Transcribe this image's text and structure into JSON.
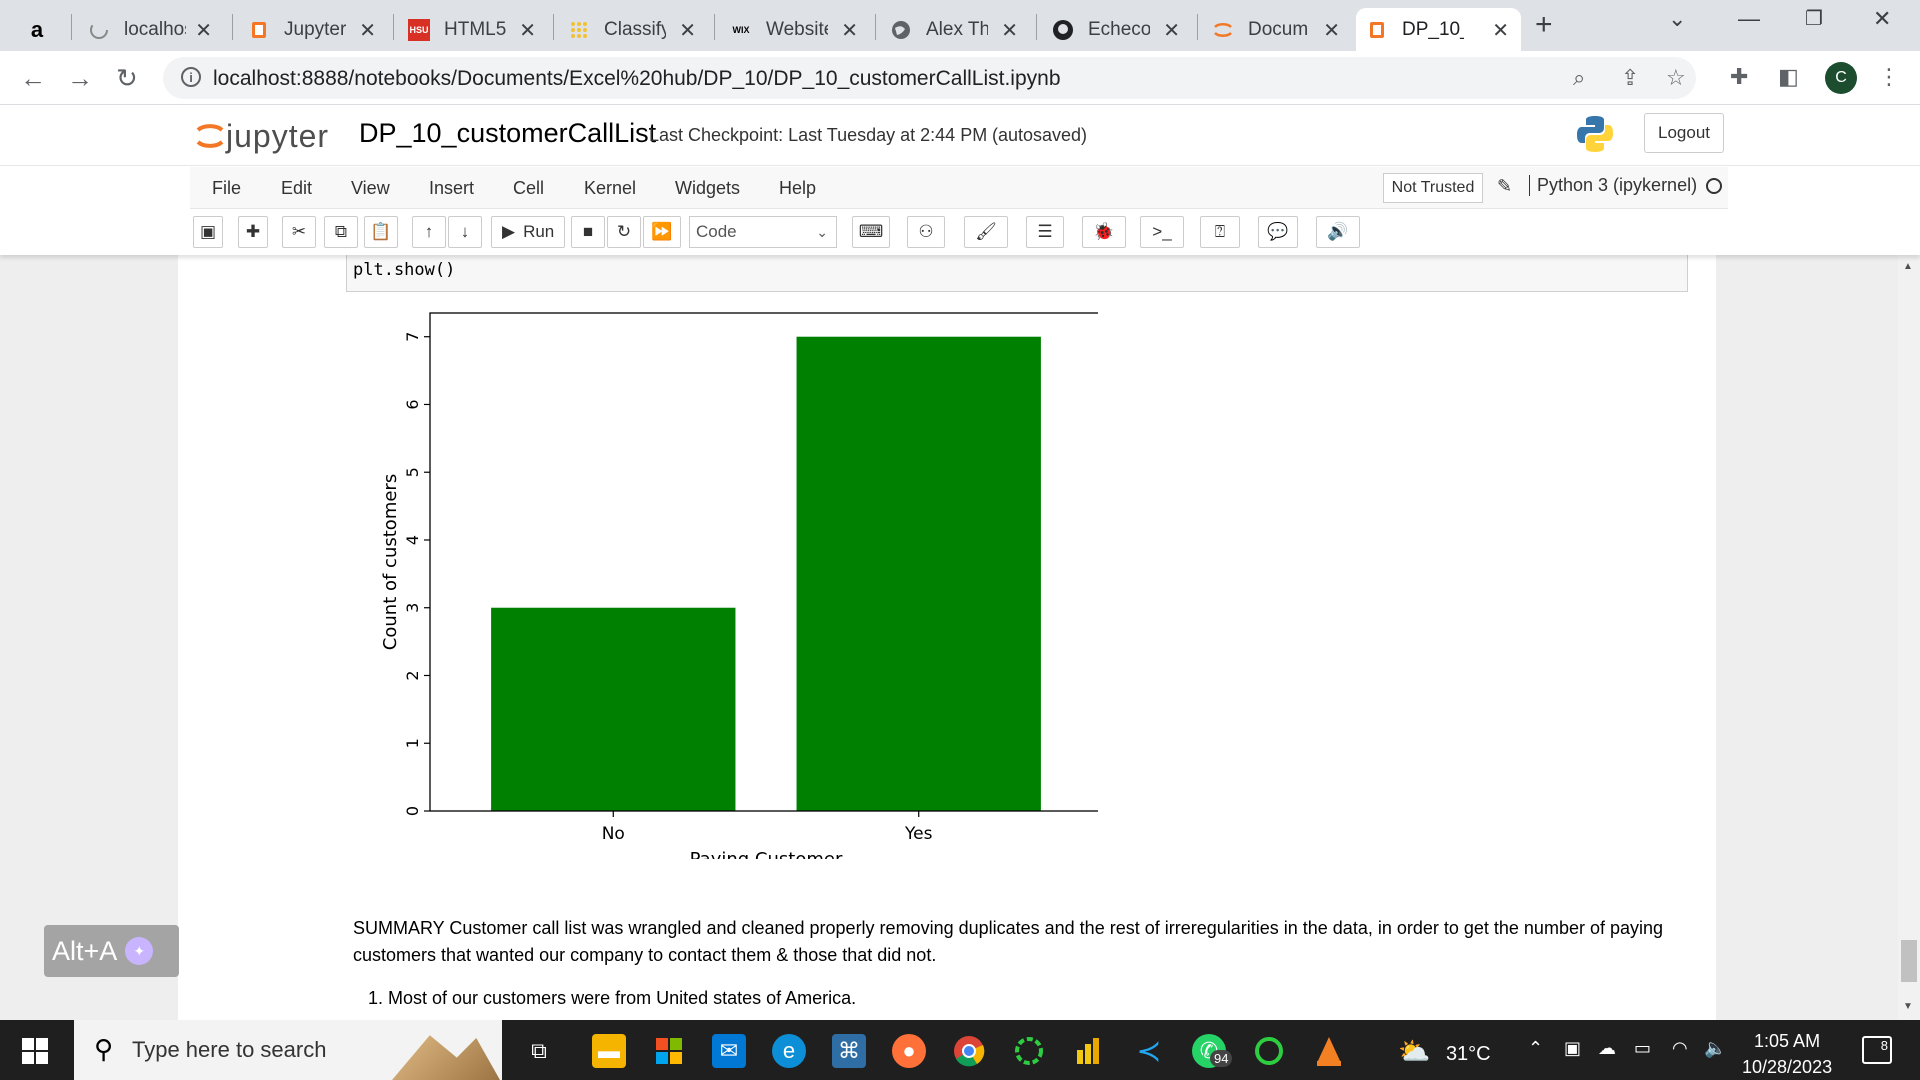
{
  "browser": {
    "tabs": [
      {
        "title": "a",
        "favicon": "amazon-icon",
        "closable": false
      },
      {
        "title": "localhost",
        "favicon": "loading-icon"
      },
      {
        "title": "Jupyter",
        "favicon": "notebook-icon"
      },
      {
        "title": "HTML5",
        "favicon": "hsu-icon",
        "favicon_text": "HSU"
      },
      {
        "title": "Classify",
        "favicon": "grid-icon"
      },
      {
        "title": "Website",
        "favicon": "wix-icon",
        "favicon_text": "WIX"
      },
      {
        "title": "Alex Th",
        "favicon": "globe-icon"
      },
      {
        "title": "Echeco",
        "favicon": "github-icon"
      },
      {
        "title": "Docum",
        "favicon": "jupyter-icon"
      },
      {
        "title": "DP_10_",
        "favicon": "notebook-icon",
        "active": true
      }
    ],
    "new_tab": "+",
    "address": "localhost:8888/notebooks/Documents/Excel%20hub/DP_10/DP_10_customerCallList.ipynb",
    "profile_initial": "C",
    "accent": "#dee1e6"
  },
  "jupyter": {
    "logo_text": "jupyter",
    "notebook_name": "DP_10_customerCallList",
    "checkpoint": "Last Checkpoint: Last Tuesday at 2:44 PM",
    "autosave": "(autosaved)",
    "logout": "Logout",
    "menu": [
      "File",
      "Edit",
      "View",
      "Insert",
      "Cell",
      "Kernel",
      "Widgets",
      "Help"
    ],
    "trust": "Not Trusted",
    "kernel": "Python 3 (ipykernel)",
    "toolbar": {
      "run_label": "Run",
      "cell_type": "Code"
    }
  },
  "cell": {
    "code": "plt.show()"
  },
  "chart_data": {
    "type": "bar",
    "categories": [
      "No",
      "Yes"
    ],
    "values": [
      3,
      7
    ],
    "xlabel": "Paying Customer",
    "ylabel": "Count of customers",
    "ylim": [
      0,
      7.35
    ],
    "yticks": [
      0,
      1,
      2,
      3,
      4,
      5,
      6,
      7
    ],
    "bar_color": "#008000",
    "grid": false
  },
  "markdown": {
    "summary": "SUMMARY Customer call list was wrangled and cleaned properly removing duplicates and the rest of irreregularities in the data, in order to get the number of paying customers that wanted our company to contact them & those that did not.",
    "list_item": "1. Most of our customers were from United states of America."
  },
  "overlay": {
    "shortcut": "Alt+A"
  },
  "taskbar": {
    "search_placeholder": "Type here to search",
    "weather": "31°C",
    "time": "1:05 AM",
    "date": "10/28/2023",
    "notification_count": "8",
    "whatsapp_badge": "94"
  }
}
